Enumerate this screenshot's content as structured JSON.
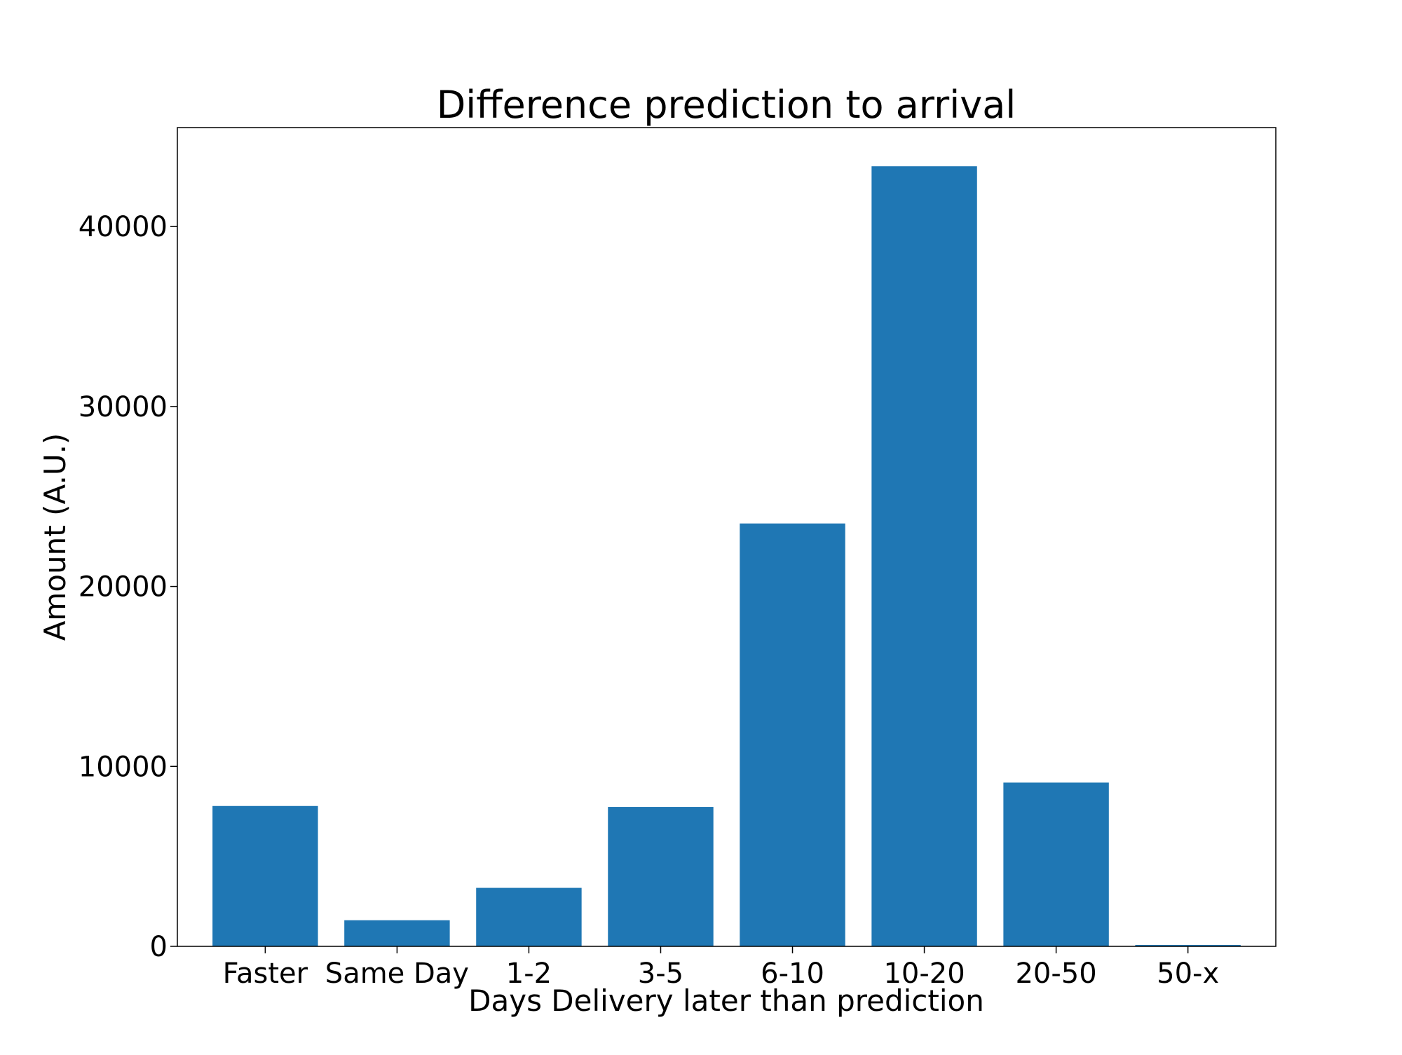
{
  "chart_data": {
    "type": "bar",
    "title": "Difference prediction to arrival",
    "xlabel": "Days Delivery later than prediction",
    "ylabel": "Amount (A.U.)",
    "categories": [
      "Faster",
      "Same Day",
      "1-2",
      "3-5",
      "6-10",
      "10-20",
      "20-50",
      "50-x"
    ],
    "values": [
      7800,
      1450,
      3250,
      7750,
      23500,
      43350,
      9100,
      80
    ],
    "ylim": [
      0,
      45500
    ],
    "yticks": [
      0,
      10000,
      20000,
      30000,
      40000
    ],
    "ytick_labels": [
      "0",
      "10000",
      "20000",
      "30000",
      "40000"
    ],
    "bar_color": "#1f77b4",
    "grid": false,
    "legend": false
  }
}
